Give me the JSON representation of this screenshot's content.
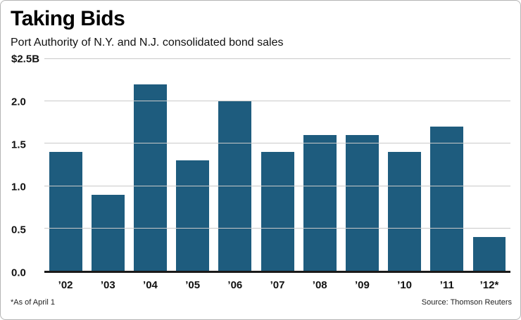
{
  "header": {
    "title": "Taking Bids",
    "subtitle": "Port Authority of N.Y. and N.J. consolidated bond sales"
  },
  "chart_data": {
    "type": "bar",
    "title": "Taking Bids",
    "subtitle": "Port Authority of N.Y. and N.J. consolidated bond sales",
    "categories": [
      "’02",
      "’03",
      "’04",
      "’05",
      "’06",
      "’07",
      "’08",
      "’09",
      "’10",
      "’11",
      "’12*"
    ],
    "values": [
      1.4,
      0.9,
      2.2,
      1.3,
      2.0,
      1.4,
      1.6,
      1.6,
      1.4,
      1.7,
      0.4
    ],
    "unit": "billions of dollars",
    "ylim": [
      0,
      2.5
    ],
    "yticks": [
      {
        "label": "$2.5B",
        "value": 2.5
      },
      {
        "label": "2.0",
        "value": 2.0
      },
      {
        "label": "1.5",
        "value": 1.5
      },
      {
        "label": "1.0",
        "value": 1.0
      },
      {
        "label": "0.5",
        "value": 0.5
      },
      {
        "label": "0.0",
        "value": 0.0
      }
    ],
    "grid": true,
    "legend": "none",
    "bar_color": "#1e5c7e",
    "gridline_color": "#c9c9c9",
    "baseline_color": "#1a1a1a"
  },
  "footer": {
    "note": "*As of April 1",
    "source": "Source: Thomson Reuters"
  }
}
